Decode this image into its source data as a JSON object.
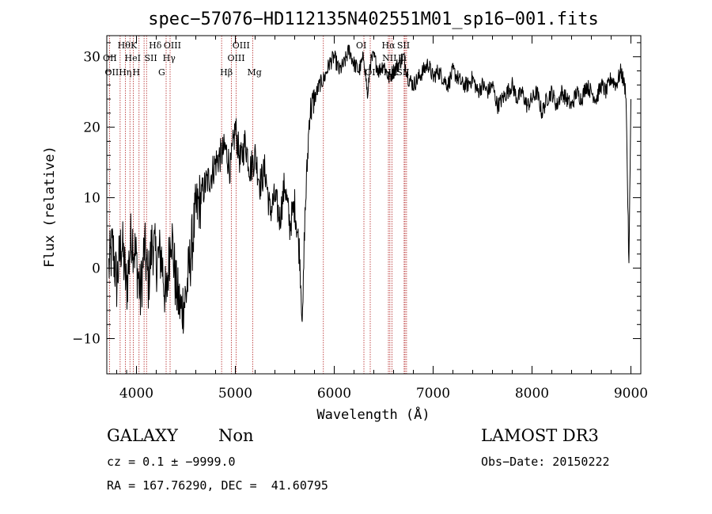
{
  "chart_data": {
    "type": "line",
    "title": "spec−57076−HD112135N402551M01_sp16−001.fits",
    "xlabel": "Wavelength (Å)",
    "ylabel": "Flux (relative)",
    "xlim": [
      3700,
      9100
    ],
    "ylim": [
      -15,
      33
    ],
    "x_ticks": [
      4000,
      5000,
      6000,
      7000,
      8000,
      9000
    ],
    "y_ticks": [
      -10,
      0,
      10,
      20,
      30
    ],
    "y_tick_labels": [
      "−10",
      "0",
      "10",
      "20",
      "30"
    ],
    "line_color": "#000000",
    "marker_color": "#b22222",
    "grid": false,
    "series": [
      {
        "x": [
          3720,
          3760,
          3800,
          3850,
          3900,
          3950,
          4000,
          4040,
          4080,
          4120,
          4160,
          4200,
          4250,
          4300,
          4350,
          4400,
          4450,
          4500,
          4550,
          4600,
          4650,
          4700,
          4750,
          4800,
          4850,
          4900,
          4950,
          5000,
          5050,
          5100,
          5150,
          5200,
          5250,
          5300,
          5350,
          5400,
          5450,
          5500,
          5550,
          5600,
          5650,
          5680,
          5700,
          5750,
          5800,
          5850,
          5900,
          5950,
          6000,
          6050,
          6100,
          6150,
          6200,
          6250,
          6300,
          6340,
          6360,
          6400,
          6450,
          6500,
          6550,
          6600,
          6650,
          6700,
          6750,
          6800,
          6850,
          6900,
          6950,
          7000,
          7050,
          7100,
          7150,
          7200,
          7250,
          7300,
          7350,
          7400,
          7450,
          7500,
          7550,
          7600,
          7650,
          7700,
          7750,
          7800,
          7850,
          7900,
          7950,
          8000,
          8050,
          8100,
          8150,
          8200,
          8250,
          8300,
          8350,
          8400,
          8450,
          8500,
          8550,
          8600,
          8650,
          8700,
          8750,
          8800,
          8850,
          8900,
          8950,
          8980,
          9000
        ],
        "y": [
          0,
          3,
          -2,
          4,
          -3,
          5,
          1,
          -4,
          3,
          -2,
          4,
          1,
          2,
          -5,
          6,
          -3,
          -6,
          -4,
          2,
          8,
          10,
          12,
          13,
          15,
          16,
          17,
          14,
          20,
          15,
          18,
          14,
          16,
          12,
          14,
          8,
          10,
          7,
          12,
          6,
          9,
          2,
          -8,
          6,
          22,
          24,
          26,
          27,
          29,
          30,
          28,
          29,
          31,
          29,
          28,
          30,
          24,
          29,
          30,
          28,
          29,
          27,
          28,
          29,
          30,
          27,
          26,
          27,
          28,
          29,
          27,
          28,
          27,
          26,
          28,
          27,
          26,
          26,
          27,
          25,
          26,
          25,
          26,
          23,
          24,
          25,
          26,
          24,
          25,
          23,
          24,
          25,
          22,
          24,
          25,
          23,
          25,
          24,
          23,
          25,
          24,
          26,
          25,
          24,
          26,
          25,
          27,
          26,
          28,
          25,
          0,
          24
        ]
      }
    ],
    "line_markers": [
      {
        "wavelength": 3727,
        "lines": [
          "OII",
          "OII"
        ]
      },
      {
        "wavelength": 3835,
        "lines": [
          "Hη"
        ]
      },
      {
        "wavelength": 3934,
        "lines": [
          "K"
        ]
      },
      {
        "wavelength": 3969,
        "lines": [
          "H"
        ]
      },
      {
        "wavelength": 4026,
        "lines": [
          "HeI"
        ]
      },
      {
        "wavelength": 4102,
        "lines": [
          "Hδ"
        ]
      },
      {
        "wavelength": 4300,
        "lines": [
          "G"
        ]
      },
      {
        "wavelength": 4340,
        "lines": [
          "Hγ"
        ]
      },
      {
        "wavelength": 4861,
        "lines": [
          "Hβ"
        ]
      },
      {
        "wavelength": 4959,
        "lines": [
          "OIII"
        ]
      },
      {
        "wavelength": 5007,
        "lines": [
          "OIII"
        ]
      },
      {
        "wavelength": 5175,
        "lines": [
          "Mg"
        ]
      },
      {
        "wavelength": 6300,
        "lines": [
          "OI"
        ]
      },
      {
        "wavelength": 6563,
        "lines": [
          "Hα"
        ]
      },
      {
        "wavelength": 6583,
        "lines": [
          "NII"
        ]
      },
      {
        "wavelength": 6716,
        "lines": [
          "SII"
        ]
      },
      {
        "wavelength": 6731,
        "lines": [
          "SII"
        ]
      },
      {
        "wavelength": 6707,
        "lines": [
          "Li"
        ]
      },
      {
        "wavelength": 3889,
        "lines": [
          "Hθ"
        ]
      },
      {
        "wavelength": 4077,
        "lines": [
          "SII"
        ]
      },
      {
        "wavelength": 6364,
        "lines": [
          "OI"
        ]
      },
      {
        "wavelength": 6548,
        "lines": [
          "NII"
        ]
      },
      {
        "wavelength": 5890,
        "lines": [
          ""
        ]
      }
    ],
    "line_label_groups": [
      {
        "text": "Hθ",
        "x": 3889,
        "row": 0
      },
      {
        "text": "K",
        "x": 4020,
        "row": 0
      },
      {
        "text": "Hδ",
        "x": 4205,
        "row": 0
      },
      {
        "text": "OIII",
        "x": 4355,
        "row": 0
      },
      {
        "text": "OIII",
        "x": 5050,
        "row": 0
      },
      {
        "text": "OI",
        "x": 6300,
        "row": 0
      },
      {
        "text": "Hα",
        "x": 6560,
        "row": 0
      },
      {
        "text": "SII",
        "x": 6715,
        "row": 0
      },
      {
        "text": "OII",
        "x": 3740,
        "row": 1
      },
      {
        "text": "HeI",
        "x": 3960,
        "row": 1
      },
      {
        "text": "SII",
        "x": 4160,
        "row": 1
      },
      {
        "text": "Hγ",
        "x": 4345,
        "row": 1
      },
      {
        "text": "OIII",
        "x": 5000,
        "row": 1
      },
      {
        "text": "NII",
        "x": 6565,
        "row": 1
      },
      {
        "text": "Li",
        "x": 6725,
        "row": 1
      },
      {
        "text": "OIIHη",
        "x": 3760,
        "row": 2
      },
      {
        "text": "H",
        "x": 4040,
        "row": 2
      },
      {
        "text": "G",
        "x": 4300,
        "row": 2
      },
      {
        "text": "Hβ",
        "x": 4925,
        "row": 2
      },
      {
        "text": "Mg",
        "x": 5200,
        "row": 2
      },
      {
        "text": "OI",
        "x": 6390,
        "row": 2
      },
      {
        "text": "NII",
        "x": 6578,
        "row": 2
      },
      {
        "text": "SII",
        "x": 6710,
        "row": 2
      }
    ]
  },
  "info": {
    "object_class": "GALAXY",
    "subclass": "Non",
    "survey": "LAMOST DR3",
    "cz_line": "cz = 0.1 ± −9999.0",
    "obs_date_line": "Obs−Date: 20150222",
    "radec_line": "RA = 167.76290, DEC =  41.60795"
  }
}
